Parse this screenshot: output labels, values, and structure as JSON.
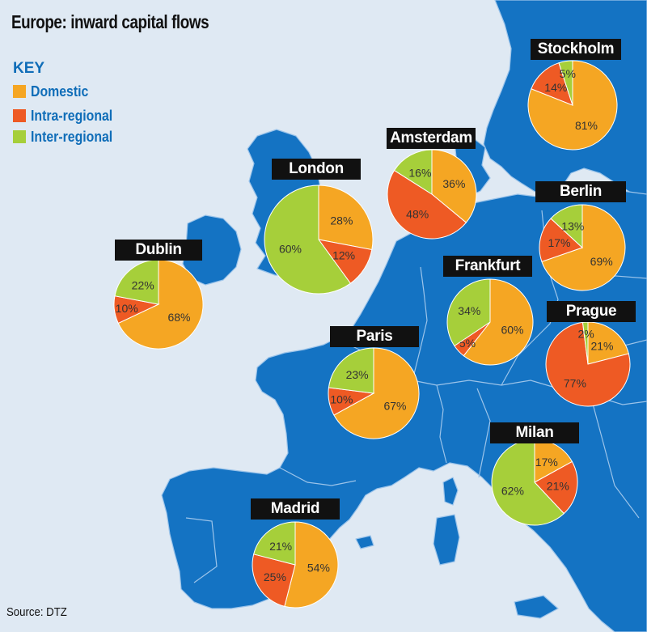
{
  "title": "Europe: inward capital flows",
  "key": {
    "title": "KEY",
    "items": [
      {
        "label": "Domestic",
        "color": "#f5a623"
      },
      {
        "label": "Intra-regional",
        "color": "#ee5a24"
      },
      {
        "label": "Inter-regional",
        "color": "#a6cf3a"
      }
    ]
  },
  "source": "Source: DTZ",
  "colors": {
    "sea": "#dfe9f3",
    "land": "#1473c3",
    "border": "#9cc4ea"
  },
  "cities": [
    {
      "name": "Stockholm",
      "domestic": 81,
      "intra": 14,
      "inter": 5,
      "labels": [
        "81%",
        "14%",
        "5%"
      ]
    },
    {
      "name": "Amsterdam",
      "domestic": 36,
      "intra": 48,
      "inter": 16,
      "labels": [
        "36%",
        "48%",
        "16%"
      ]
    },
    {
      "name": "London",
      "domestic": 28,
      "intra": 12,
      "inter": 60,
      "labels": [
        "28%",
        "12%",
        "60%"
      ]
    },
    {
      "name": "Berlin",
      "domestic": 69,
      "intra": 17,
      "inter": 13,
      "labels": [
        "69%",
        "17%",
        "13%"
      ]
    },
    {
      "name": "Dublin",
      "domestic": 68,
      "intra": 10,
      "inter": 22,
      "labels": [
        "68%",
        "10%",
        "22%"
      ]
    },
    {
      "name": "Frankfurt",
      "domestic": 60,
      "intra": 5,
      "inter": 34,
      "labels": [
        "60%",
        "5%",
        "34%"
      ]
    },
    {
      "name": "Prague",
      "domestic": 21,
      "intra": 77,
      "inter": 2,
      "labels": [
        "21%",
        "77%",
        "2%"
      ]
    },
    {
      "name": "Paris",
      "domestic": 67,
      "intra": 10,
      "inter": 23,
      "labels": [
        "67%",
        "10%",
        "23%"
      ]
    },
    {
      "name": "Milan",
      "domestic": 17,
      "intra": 21,
      "inter": 62,
      "labels": [
        "17%",
        "21%",
        "62%"
      ]
    },
    {
      "name": "Madrid",
      "domestic": 54,
      "intra": 25,
      "inter": 21,
      "labels": [
        "54%",
        "25%",
        "21%"
      ]
    }
  ]
}
